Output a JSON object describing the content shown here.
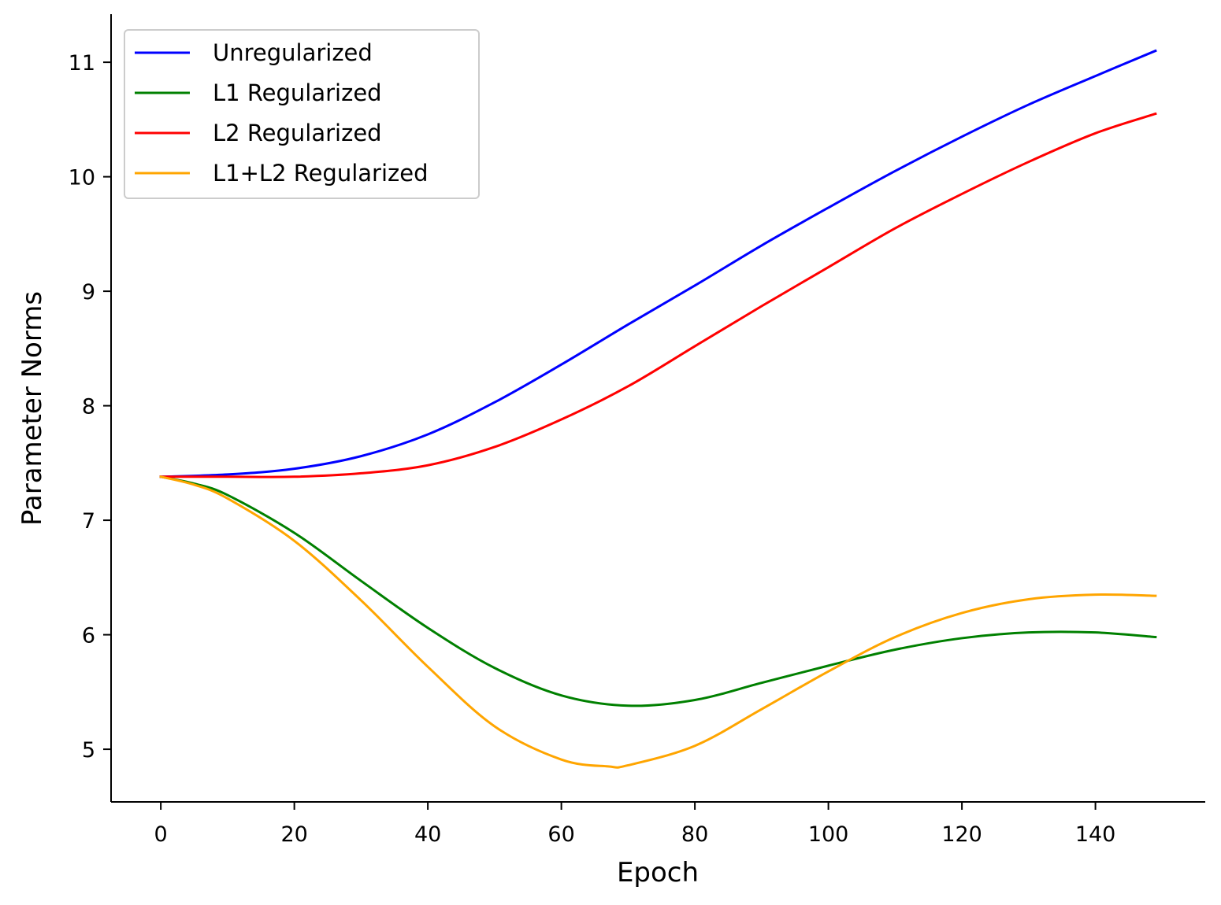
{
  "chart_data": {
    "type": "line",
    "title": "",
    "xlabel": "Epoch",
    "ylabel": "Parameter Norms",
    "xlim": [
      -7.45,
      156.45
    ],
    "ylim": [
      4.54,
      11.42
    ],
    "xticks": [
      0,
      20,
      40,
      60,
      80,
      100,
      120,
      140
    ],
    "yticks": [
      5,
      6,
      7,
      8,
      9,
      10,
      11
    ],
    "grid": false,
    "legend": "top-left",
    "series": [
      {
        "name": "Unregularized",
        "color": "#0000ff",
        "x": [
          0,
          10,
          20,
          30,
          40,
          50,
          60,
          70,
          80,
          90,
          100,
          110,
          120,
          130,
          140,
          149
        ],
        "y": [
          7.38,
          7.4,
          7.45,
          7.56,
          7.75,
          8.03,
          8.36,
          8.71,
          9.05,
          9.4,
          9.73,
          10.05,
          10.35,
          10.63,
          10.88,
          11.1
        ]
      },
      {
        "name": "L1 Regularized",
        "color": "#008000",
        "x": [
          0,
          5,
          10,
          20,
          30,
          40,
          50,
          60,
          70,
          80,
          90,
          100,
          110,
          120,
          130,
          140,
          149
        ],
        "y": [
          7.38,
          7.32,
          7.22,
          6.89,
          6.47,
          6.06,
          5.71,
          5.47,
          5.38,
          5.43,
          5.58,
          5.73,
          5.87,
          5.97,
          6.02,
          6.02,
          5.98
        ]
      },
      {
        "name": "L2 Regularized",
        "color": "#ff0000",
        "x": [
          0,
          10,
          20,
          30,
          40,
          50,
          60,
          70,
          80,
          90,
          100,
          110,
          120,
          130,
          140,
          149
        ],
        "y": [
          7.38,
          7.38,
          7.38,
          7.41,
          7.48,
          7.64,
          7.88,
          8.17,
          8.52,
          8.87,
          9.21,
          9.55,
          9.85,
          10.13,
          10.38,
          10.55
        ]
      },
      {
        "name": "L1+L2 Regularized",
        "color": "#ffa500",
        "x": [
          0,
          5,
          10,
          20,
          30,
          40,
          50,
          60,
          67,
          70,
          80,
          90,
          100,
          110,
          120,
          130,
          140,
          149
        ],
        "y": [
          7.38,
          7.31,
          7.19,
          6.82,
          6.3,
          5.72,
          5.2,
          4.91,
          4.85,
          4.86,
          5.03,
          5.35,
          5.68,
          5.98,
          6.19,
          6.31,
          6.35,
          6.34
        ]
      }
    ]
  }
}
